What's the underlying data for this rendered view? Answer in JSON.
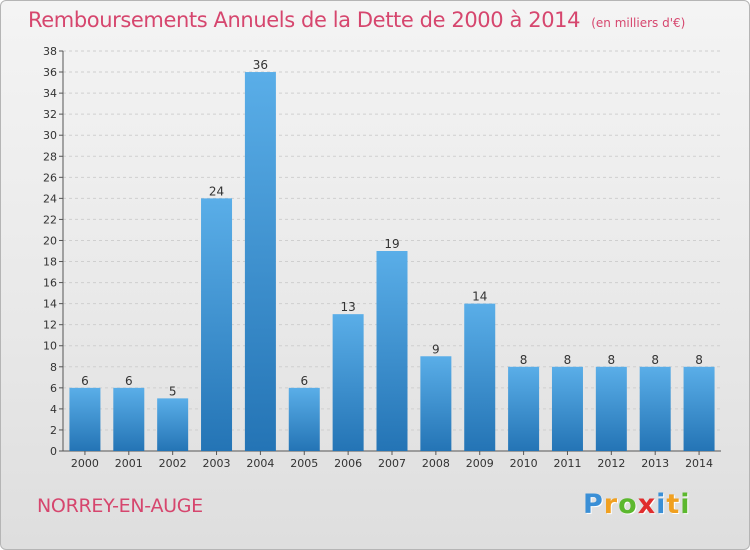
{
  "title": "Remboursements Annuels de la Dette de 2000 à 2014",
  "unit": "(en milliers d'€)",
  "location": "NORREY-EN-AUGE",
  "logo": {
    "text": "Proxiti",
    "letters": [
      {
        "char": "P",
        "color": "#3a8fd6"
      },
      {
        "char": "r",
        "color": "#f0a020"
      },
      {
        "char": "o",
        "color": "#5cb82e"
      },
      {
        "char": "x",
        "color": "#e02d2d"
      },
      {
        "char": "i",
        "color": "#3a8fd6"
      },
      {
        "char": "t",
        "color": "#f0a020"
      },
      {
        "char": "i",
        "color": "#5cb82e"
      }
    ]
  },
  "colors": {
    "bar_top": "#5aaee8",
    "bar_bottom": "#2474b5",
    "title": "#d6466e",
    "grid": "#cfcfcf"
  },
  "chart_data": {
    "type": "bar",
    "categories": [
      "2000",
      "2001",
      "2002",
      "2003",
      "2004",
      "2005",
      "2006",
      "2007",
      "2008",
      "2009",
      "2010",
      "2011",
      "2012",
      "2013",
      "2014"
    ],
    "values": [
      6,
      6,
      5,
      24,
      36,
      6,
      13,
      19,
      9,
      14,
      8,
      8,
      8,
      8,
      8
    ],
    "ylim": [
      0,
      38
    ],
    "yticks": [
      0,
      2,
      4,
      6,
      8,
      10,
      12,
      14,
      16,
      18,
      20,
      22,
      24,
      26,
      28,
      30,
      32,
      34,
      36,
      38
    ],
    "grid": true,
    "legend": "none"
  }
}
